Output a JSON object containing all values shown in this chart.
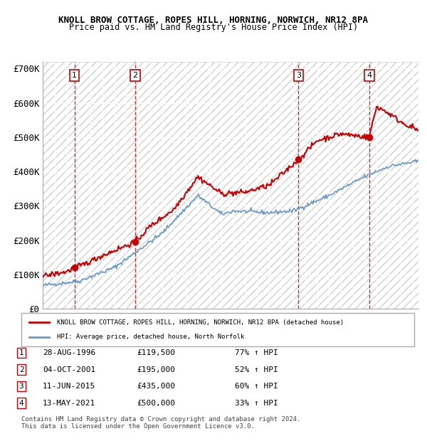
{
  "title": "KNOLL BROW COTTAGE, ROPES HILL, HORNING, NORWICH, NR12 8PA",
  "subtitle": "Price paid vs. HM Land Registry's House Price Index (HPI)",
  "ylabel": "",
  "ylim": [
    0,
    720000
  ],
  "yticks": [
    0,
    100000,
    200000,
    300000,
    400000,
    500000,
    600000,
    700000
  ],
  "ytick_labels": [
    "£0",
    "£100K",
    "£200K",
    "£300K",
    "£400K",
    "£500K",
    "£600K",
    "£700K"
  ],
  "xmin": 1994.0,
  "xmax": 2025.5,
  "sale_dates": [
    1996.66,
    2001.76,
    2015.44,
    2021.36
  ],
  "sale_prices": [
    119500,
    195000,
    435000,
    500000
  ],
  "sale_labels": [
    "1",
    "2",
    "3",
    "4"
  ],
  "sale_info": [
    {
      "num": "1",
      "date": "28-AUG-1996",
      "price": "£119,500",
      "pct": "77% ↑ HPI"
    },
    {
      "num": "2",
      "date": "04-OCT-2001",
      "price": "£195,000",
      "pct": "52% ↑ HPI"
    },
    {
      "num": "3",
      "date": "11-JUN-2015",
      "price": "£435,000",
      "pct": "60% ↑ HPI"
    },
    {
      "num": "4",
      "date": "13-MAY-2021",
      "price": "£500,000",
      "pct": "33% ↑ HPI"
    }
  ],
  "legend_line1": "KNOLL BROW COTTAGE, ROPES HILL, HORNING, NORWICH, NR12 8PA (detached house)",
  "legend_line2": "HPI: Average price, detached house, North Norfolk",
  "footer": "Contains HM Land Registry data © Crown copyright and database right 2024.\nThis data is licensed under the Open Government Licence v3.0.",
  "hatch_color": "#cccccc",
  "red_color": "#cc0000",
  "blue_color": "#6699cc",
  "bg_hatch_color": "#e8e8e8"
}
